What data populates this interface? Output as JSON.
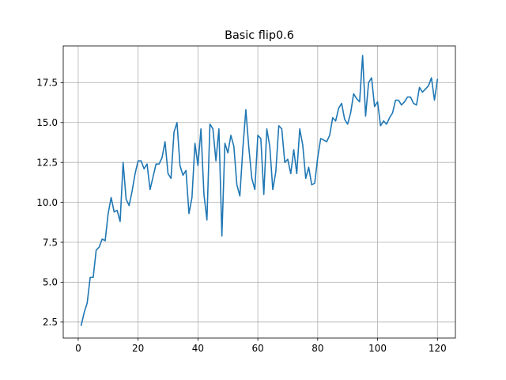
{
  "chart_data": {
    "type": "line",
    "title": "Basic flip0.6",
    "xlabel": "",
    "ylabel": "",
    "xlim": [
      -5,
      126
    ],
    "ylim": [
      1.5,
      19.8
    ],
    "xticks": [
      0,
      20,
      40,
      60,
      80,
      100,
      120
    ],
    "yticks": [
      2.5,
      5.0,
      7.5,
      10.0,
      12.5,
      15.0,
      17.5
    ],
    "xtick_labels": [
      "0",
      "20",
      "40",
      "60",
      "80",
      "100",
      "120"
    ],
    "ytick_labels": [
      "2.5",
      "5.0",
      "7.5",
      "10.0",
      "12.5",
      "15.0",
      "17.5"
    ],
    "grid": true,
    "line_color": "#1f77b4",
    "series": [
      {
        "x": [
          1,
          2,
          3,
          4,
          5,
          6,
          7,
          8,
          9,
          10,
          11,
          12,
          13,
          14,
          15,
          16,
          17,
          18,
          19,
          20,
          21,
          22,
          23,
          24,
          25,
          26,
          27,
          28,
          29,
          30,
          31,
          32,
          33,
          34,
          35,
          36,
          37,
          38,
          39,
          40,
          41,
          42,
          43,
          44,
          45,
          46,
          47,
          48,
          49,
          50,
          51,
          52,
          53,
          54,
          55,
          56,
          57,
          58,
          59,
          60,
          61,
          62,
          63,
          64,
          65,
          66,
          67,
          68,
          69,
          70,
          71,
          72,
          73,
          74,
          75,
          76,
          77,
          78,
          79,
          80,
          81,
          82,
          83,
          84,
          85,
          86,
          87,
          88,
          89,
          90,
          91,
          92,
          93,
          94,
          95,
          96,
          97,
          98,
          99,
          100,
          101,
          102,
          103,
          104,
          105,
          106,
          107,
          108,
          109,
          110,
          111,
          112,
          113,
          114,
          115,
          116,
          117,
          118,
          119,
          120
        ],
        "y": [
          2.3,
          3.1,
          3.7,
          5.3,
          5.3,
          7.0,
          7.2,
          7.7,
          7.6,
          9.3,
          10.3,
          9.4,
          9.5,
          8.8,
          12.5,
          10.2,
          9.8,
          10.7,
          11.8,
          12.6,
          12.6,
          12.1,
          12.4,
          10.8,
          11.6,
          12.4,
          12.4,
          12.8,
          13.8,
          11.8,
          11.5,
          14.4,
          15.0,
          12.3,
          11.7,
          12.0,
          9.3,
          10.3,
          13.7,
          12.3,
          14.6,
          10.5,
          8.9,
          14.9,
          14.6,
          12.6,
          14.6,
          7.9,
          13.7,
          13.1,
          14.2,
          13.5,
          11.1,
          10.4,
          13.4,
          15.8,
          13.4,
          11.5,
          10.8,
          14.2,
          14.0,
          10.5,
          14.6,
          13.5,
          10.8,
          11.9,
          14.8,
          14.6,
          12.5,
          12.7,
          11.8,
          13.3,
          11.8,
          14.6,
          13.6,
          11.5,
          12.2,
          11.1,
          11.2,
          12.8,
          14.0,
          13.9,
          13.8,
          14.2,
          15.3,
          15.1,
          15.9,
          16.2,
          15.2,
          14.9,
          15.6,
          16.8,
          16.5,
          16.3,
          19.2,
          15.4,
          17.5,
          17.8,
          16.0,
          16.3,
          14.8,
          15.1,
          14.9,
          15.3,
          15.6,
          16.4,
          16.4,
          16.1,
          16.3,
          16.6,
          16.6,
          16.2,
          16.1,
          17.2,
          16.9,
          17.1,
          17.3,
          17.8,
          16.4,
          17.7
        ]
      }
    ]
  }
}
